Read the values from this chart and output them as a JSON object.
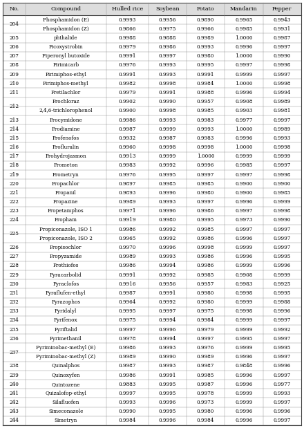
{
  "headers": [
    "No.",
    "Compound",
    "Hulled rice",
    "Soybean",
    "Potato",
    "Mandarin",
    "Pepper"
  ],
  "rows": [
    [
      "204",
      "Phosphamidon (E)",
      "0.9993",
      "0.9956",
      "0.9890",
      "0.9965",
      "0.9943"
    ],
    [
      "204",
      "Phosphamidon (Z)",
      "0.9866",
      "0.9975",
      "0.9966",
      "0.9985",
      "0.9931"
    ],
    [
      "205",
      "phthalide",
      "0.9988",
      "0.9888",
      "0.9989",
      "1.0000",
      "0.9987"
    ],
    [
      "206",
      "Picoxystrobin",
      "0.9979",
      "0.9986",
      "0.9993",
      "0.9996",
      "0.9997"
    ],
    [
      "207",
      "Piperonyl butoxide",
      "0.9991",
      "0.9997",
      "0.9980",
      "1.0000",
      "0.9990"
    ],
    [
      "208",
      "Pirimicarb",
      "0.9976",
      "0.9993",
      "0.9995",
      "0.9997",
      "0.9998"
    ],
    [
      "209",
      "Pirimiphos-ethyl",
      "0.9991",
      "0.9993",
      "0.9991",
      "0.9999",
      "0.9997"
    ],
    [
      "210",
      "Pirimiphos-methyl",
      "0.9982",
      "0.9998",
      "0.9984",
      "1.0000",
      "0.9998"
    ],
    [
      "211",
      "Pretilachlor",
      "0.9979",
      "0.9991",
      "0.9988",
      "0.9996",
      "0.9994"
    ],
    [
      "212",
      "Prochloraz",
      "0.9902",
      "0.9990",
      "0.9957",
      "0.9908",
      "0.9989"
    ],
    [
      "212",
      "2,4,6-trichlorophenol",
      "0.9900",
      "0.9998",
      "0.9985",
      "0.9903",
      "0.9981"
    ],
    [
      "213",
      "Procymidone",
      "0.9986",
      "0.9993",
      "0.9983",
      "0.9977",
      "0.9997"
    ],
    [
      "214",
      "Prodiamine",
      "0.9987",
      "0.9999",
      "0.9993",
      "1.0000",
      "0.9989"
    ],
    [
      "215",
      "Profenofos",
      "0.9932",
      "0.9987",
      "0.9983",
      "0.9996",
      "0.9993"
    ],
    [
      "216",
      "Profluralin",
      "0.9960",
      "0.9998",
      "0.9998",
      "1.0000",
      "0.9998"
    ],
    [
      "217",
      "Prohydrojasmon",
      "0.9913",
      "0.9999",
      "1.0000",
      "0.9999",
      "0.9999"
    ],
    [
      "218",
      "Prometon",
      "0.9983",
      "0.9992",
      "0.9996",
      "0.9985",
      "0.9997"
    ],
    [
      "219",
      "Prometryn",
      "0.9976",
      "0.9995",
      "0.9997",
      "0.9997",
      "0.9998"
    ],
    [
      "220",
      "Propachlor",
      "0.9897",
      "0.9985",
      "0.9985",
      "0.9900",
      "0.9900"
    ],
    [
      "221",
      "Propanil",
      "0.9893",
      "0.9996",
      "0.9980",
      "0.9900",
      "0.9985"
    ],
    [
      "222",
      "Propazine",
      "0.9989",
      "0.9993",
      "0.9997",
      "0.9996",
      "0.9999"
    ],
    [
      "223",
      "Propetamphos",
      "0.9971",
      "0.9996",
      "0.9986",
      "0.9997",
      "0.9998"
    ],
    [
      "224",
      "Propham",
      "0.9919",
      "0.9980",
      "0.9995",
      "0.9973",
      "0.9990"
    ],
    [
      "225",
      "Propiconazole, ISO 1",
      "0.9986",
      "0.9992",
      "0.9985",
      "0.9997",
      "0.9997"
    ],
    [
      "225",
      "Propiconazole, ISO 2",
      "0.9965",
      "0.9992",
      "0.9986",
      "0.9996",
      "0.9997"
    ],
    [
      "226",
      "Propisochlor",
      "0.9970",
      "0.9996",
      "0.9998",
      "0.9999",
      "0.9997"
    ],
    [
      "227",
      "Propyzamide",
      "0.9989",
      "0.9993",
      "0.9986",
      "0.9996",
      "0.9995"
    ],
    [
      "228",
      "Prothiofos",
      "0.9986",
      "0.9994",
      "0.9986",
      "0.9999",
      "0.9996"
    ],
    [
      "229",
      "Pyracarbolid",
      "0.9991",
      "0.9992",
      "0.9985",
      "0.9908",
      "0.9999"
    ],
    [
      "230",
      "Pyraclofos",
      "0.9916",
      "0.9956",
      "0.9957",
      "0.9983",
      "0.9925"
    ],
    [
      "231",
      "Pyraflufen-ethyl",
      "0.9987",
      "0.9991",
      "0.9980",
      "0.9998",
      "0.9995"
    ],
    [
      "232",
      "Pyrazophos",
      "0.9964",
      "0.9992",
      "0.9980",
      "0.9999",
      "0.9988"
    ],
    [
      "233",
      "Pyridalyl",
      "0.9995",
      "0.9997",
      "0.9975",
      "0.9998",
      "0.9996"
    ],
    [
      "234",
      "Pyrifenox",
      "0.9975",
      "0.9994",
      "0.9984",
      "0.9999",
      "0.9997"
    ],
    [
      "235",
      "Pyriftalid",
      "0.9997",
      "0.9996",
      "0.9979",
      "0.9999",
      "0.9992"
    ],
    [
      "236",
      "Pyrimethanil",
      "0.9978",
      "0.9994",
      "0.9997",
      "0.9995",
      "0.9997"
    ],
    [
      "237",
      "Pyriminobac-methyl (E)",
      "0.9986",
      "0.9993",
      "0.9976",
      "0.9999",
      "0.9995"
    ],
    [
      "237",
      "Pyriminobac-methyl (Z)",
      "0.9989",
      "0.9990",
      "0.9989",
      "0.9996",
      "0.9997"
    ],
    [
      "238",
      "Quinalphos",
      "0.9987",
      "0.9993",
      "0.9987",
      "0.9848",
      "0.9996"
    ],
    [
      "239",
      "Quinoxyfen",
      "0.9986",
      "0.9991",
      "0.9985",
      "0.9996",
      "0.9997"
    ],
    [
      "240",
      "Quintozene",
      "0.9883",
      "0.9995",
      "0.9987",
      "0.9996",
      "0.9977"
    ],
    [
      "241",
      "Quizalofop-ethyl",
      "0.9997",
      "0.9995",
      "0.9978",
      "0.9999",
      "0.9993"
    ],
    [
      "242",
      "Silafluofen",
      "0.9993",
      "0.9996",
      "0.9973",
      "0.9999",
      "0.9997"
    ],
    [
      "243",
      "Simeconazole",
      "0.9990",
      "0.9995",
      "0.9980",
      "0.9996",
      "0.9996"
    ],
    [
      "244",
      "Simetryn",
      "0.9984",
      "0.9996",
      "0.9984",
      "0.9996",
      "0.9997"
    ]
  ],
  "merged_rows": {
    "204": [
      0,
      1
    ],
    "212": [
      9,
      10
    ],
    "225": [
      23,
      24
    ],
    "237": [
      36,
      37
    ]
  },
  "text_color": "#000000",
  "font_size": 5.2,
  "header_font_size": 5.8
}
